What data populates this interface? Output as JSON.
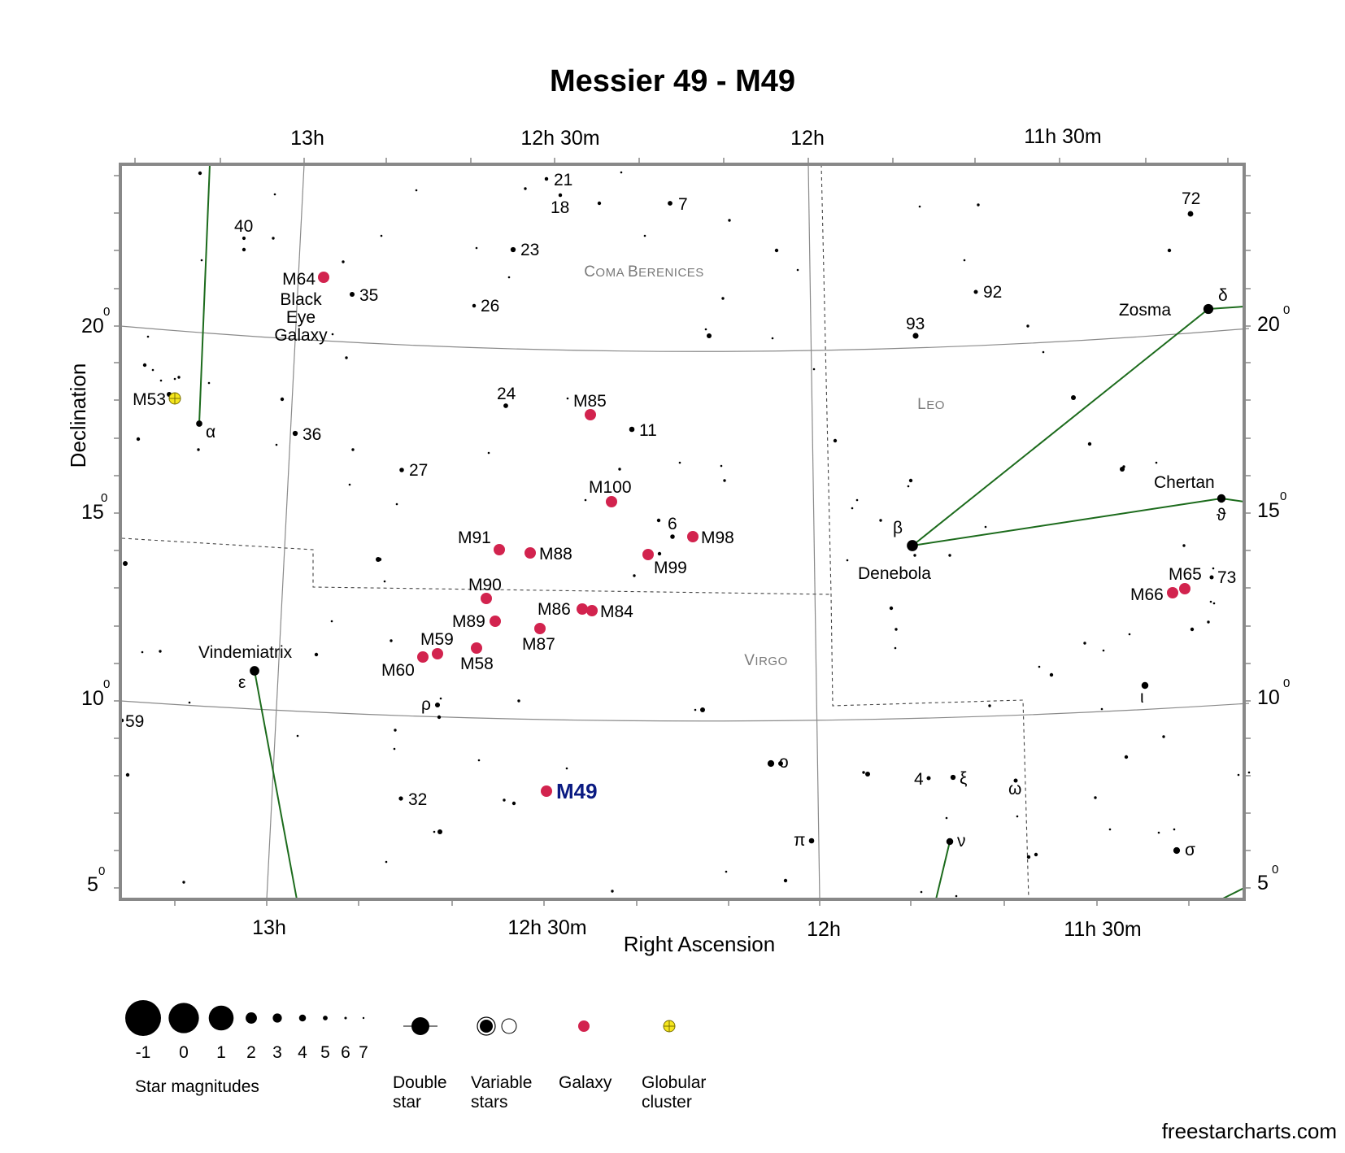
{
  "title": "Messier 49 - M49",
  "axes": {
    "x_title": "Right Ascension",
    "y_title": "Declination",
    "ra_labels": [
      "13h",
      "12h 30m",
      "12h",
      "11h 30m"
    ],
    "dec_labels": [
      "20",
      "15",
      "10",
      "5"
    ],
    "degree_mark": "0"
  },
  "constellations": [
    {
      "id": "coma",
      "text": "Coma Berenices"
    },
    {
      "id": "leo",
      "text": "Leo"
    },
    {
      "id": "virgo",
      "text": "Virgo"
    }
  ],
  "stars": [
    {
      "name": "Zosma",
      "mag": 2.6
    },
    {
      "name": "δ",
      "mag": 2.6
    },
    {
      "name": "Denebola",
      "mag": 2.1
    },
    {
      "name": "β",
      "mag": 2.1
    },
    {
      "name": "Chertan",
      "mag": 3.3
    },
    {
      "name": "ϑ",
      "mag": 3.3
    },
    {
      "name": "Vindemiatrix",
      "mag": 2.8
    },
    {
      "name": "ε",
      "mag": 2.8
    },
    {
      "name": "α",
      "mag": 4.3
    },
    {
      "name": "72",
      "mag": 4.6
    },
    {
      "name": "92",
      "mag": 5.3
    },
    {
      "name": "93",
      "mag": 4.5
    },
    {
      "name": "21",
      "mag": 5.5
    },
    {
      "name": "18",
      "mag": 5.5
    },
    {
      "name": "7",
      "mag": 5.0
    },
    {
      "name": "23",
      "mag": 4.8
    },
    {
      "name": "35",
      "mag": 4.9
    },
    {
      "name": "26",
      "mag": 5.5
    },
    {
      "name": "40",
      "mag": 5.6
    },
    {
      "name": "24",
      "mag": 5.0
    },
    {
      "name": "11",
      "mag": 4.7
    },
    {
      "name": "36",
      "mag": 4.8
    },
    {
      "name": "27",
      "mag": 5.1
    },
    {
      "name": "6",
      "mag": 5.1
    },
    {
      "name": "73",
      "mag": 5.3
    },
    {
      "name": "ι",
      "mag": 4.0
    },
    {
      "name": "ρ",
      "mag": 4.9
    },
    {
      "name": "59",
      "mag": 5.5
    },
    {
      "name": "o",
      "mag": 4.1
    },
    {
      "name": "4",
      "mag": 5.3
    },
    {
      "name": "ξ",
      "mag": 4.8
    },
    {
      "name": "ω",
      "mag": 5.3
    },
    {
      "name": "32",
      "mag": 5.2
    },
    {
      "name": "π",
      "mag": 4.7
    },
    {
      "name": "ν",
      "mag": 4.0
    },
    {
      "name": "σ",
      "mag": 4.1
    }
  ],
  "objects": [
    {
      "name": "M64",
      "type": "galaxy",
      "extra": [
        "Black",
        "Eye",
        "Galaxy"
      ]
    },
    {
      "name": "M53",
      "type": "globular"
    },
    {
      "name": "M85",
      "type": "galaxy"
    },
    {
      "name": "M100",
      "type": "galaxy"
    },
    {
      "name": "M98",
      "type": "galaxy"
    },
    {
      "name": "M99",
      "type": "galaxy"
    },
    {
      "name": "M91",
      "type": "galaxy"
    },
    {
      "name": "M88",
      "type": "galaxy"
    },
    {
      "name": "M90",
      "type": "galaxy"
    },
    {
      "name": "M86",
      "type": "galaxy"
    },
    {
      "name": "M84",
      "type": "galaxy"
    },
    {
      "name": "M89",
      "type": "galaxy"
    },
    {
      "name": "M87",
      "type": "galaxy"
    },
    {
      "name": "M59",
      "type": "galaxy"
    },
    {
      "name": "M58",
      "type": "galaxy"
    },
    {
      "name": "M60",
      "type": "galaxy"
    },
    {
      "name": "M65",
      "type": "galaxy"
    },
    {
      "name": "M66",
      "type": "galaxy"
    },
    {
      "name": "M49",
      "type": "galaxy",
      "highlight": true
    }
  ],
  "legend": {
    "magnitudes": [
      "-1",
      "0",
      "1",
      "2",
      "3",
      "4",
      "5",
      "6",
      "7"
    ],
    "magnitudes_title": "Star magnitudes",
    "double_star": [
      "Double",
      "star"
    ],
    "variable_stars": [
      "Variable",
      "stars"
    ],
    "galaxy": "Galaxy",
    "globular": [
      "Globular",
      "cluster"
    ]
  },
  "colors": {
    "galaxy": "#d2234e",
    "globular": "#f5e61e",
    "constellation_line": "#1c6b1c",
    "frame": "#888888",
    "grid": "#8a8a8a",
    "highlight_label": "#0a1a82"
  },
  "credit": "freestarcharts.com"
}
